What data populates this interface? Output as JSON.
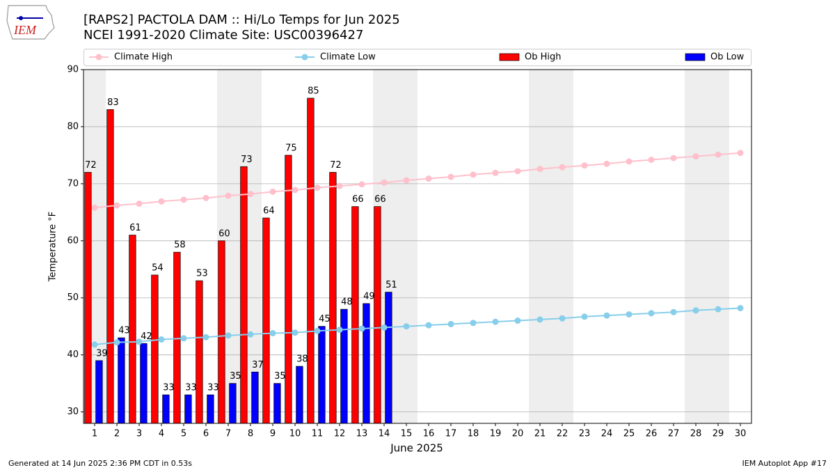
{
  "logo_text": "IEM",
  "footer_left": "Generated at 14 Jun 2025 2:36 PM CDT in 0.53s",
  "footer_right": "IEM Autoplot App #17",
  "chart_data": {
    "type": "bar",
    "title": "[RAPS2] PACTOLA DAM :: Hi/Lo Temps for Jun 2025",
    "subtitle": "NCEI 1991-2020 Climate Site: USC00396427",
    "x_label": "June 2025",
    "y_label": "Temperature °F",
    "x": [
      1,
      2,
      3,
      4,
      5,
      6,
      7,
      8,
      9,
      10,
      11,
      12,
      13,
      14,
      15,
      16,
      17,
      18,
      19,
      20,
      21,
      22,
      23,
      24,
      25,
      26,
      27,
      28,
      29,
      30
    ],
    "xlim": [
      0.5,
      30.5
    ],
    "xticks": [
      1,
      2,
      3,
      4,
      5,
      6,
      7,
      8,
      9,
      10,
      11,
      12,
      13,
      14,
      15,
      16,
      17,
      18,
      19,
      20,
      21,
      22,
      23,
      24,
      25,
      26,
      27,
      28,
      29,
      30
    ],
    "ylim": [
      28,
      90
    ],
    "yticks": [
      30,
      40,
      50,
      60,
      70,
      80,
      90
    ],
    "grid": true,
    "shaded_days": [
      1,
      7,
      8,
      14,
      15,
      21,
      22,
      28,
      29
    ],
    "series": [
      {
        "name": "Climate High",
        "type": "line",
        "color": "#ffc0cb",
        "values": [
          65.8,
          66.2,
          66.5,
          66.9,
          67.2,
          67.5,
          67.9,
          68.2,
          68.6,
          68.9,
          69.3,
          69.6,
          69.9,
          70.2,
          70.6,
          70.9,
          71.2,
          71.6,
          71.9,
          72.2,
          72.6,
          72.9,
          73.2,
          73.5,
          73.9,
          74.2,
          74.5,
          74.8,
          75.1,
          75.4
        ]
      },
      {
        "name": "Climate Low",
        "type": "line",
        "color": "#87ceeb",
        "values": [
          41.8,
          42.2,
          42.3,
          42.7,
          42.9,
          43.1,
          43.4,
          43.6,
          43.8,
          43.9,
          44.2,
          44.4,
          44.6,
          44.8,
          45.0,
          45.2,
          45.4,
          45.6,
          45.8,
          46.0,
          46.2,
          46.4,
          46.7,
          46.9,
          47.1,
          47.3,
          47.5,
          47.8,
          48.0,
          48.2
        ]
      },
      {
        "name": "Ob High",
        "type": "bar",
        "color": "#ff0000",
        "values": [
          72,
          83,
          61,
          54,
          58,
          53,
          60,
          73,
          64,
          75,
          85,
          72,
          66,
          66,
          null,
          null,
          null,
          null,
          null,
          null,
          null,
          null,
          null,
          null,
          null,
          null,
          null,
          null,
          null,
          null
        ]
      },
      {
        "name": "Ob Low",
        "type": "bar",
        "color": "#0000ff",
        "values": [
          39,
          43,
          42,
          33,
          33,
          33,
          35,
          37,
          35,
          38,
          45,
          48,
          49,
          51,
          null,
          null,
          null,
          null,
          null,
          null,
          null,
          null,
          null,
          null,
          null,
          null,
          null,
          null,
          null,
          null
        ]
      }
    ]
  }
}
